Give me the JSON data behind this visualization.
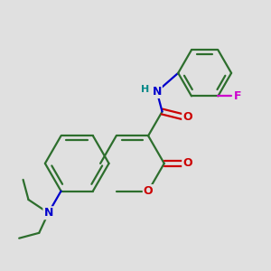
{
  "bg_color": "#e0e0e0",
  "bond_color": "#2d6e2d",
  "bond_width": 1.6,
  "atom_colors": {
    "O": "#cc0000",
    "N": "#0000cc",
    "F": "#cc00cc",
    "H": "#008888",
    "C": "#2d6e2d"
  },
  "font_size": 9,
  "figsize": [
    3.0,
    3.0
  ],
  "dpi": 100,
  "xlim": [
    -1.6,
    2.4
  ],
  "ylim": [
    -1.6,
    2.0
  ]
}
